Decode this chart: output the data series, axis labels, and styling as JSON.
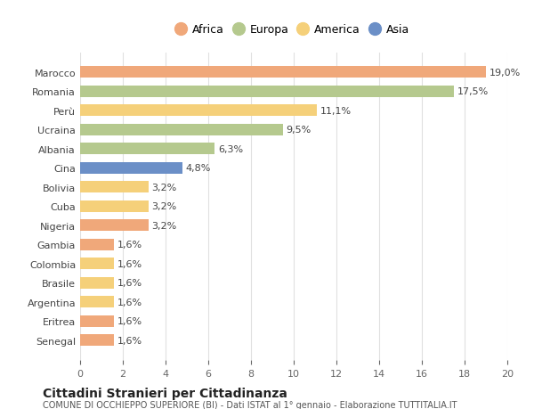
{
  "categories": [
    "Senegal",
    "Eritrea",
    "Argentina",
    "Brasile",
    "Colombia",
    "Gambia",
    "Nigeria",
    "Cuba",
    "Bolivia",
    "Cina",
    "Albania",
    "Ucraina",
    "Perù",
    "Romania",
    "Marocco"
  ],
  "values": [
    1.6,
    1.6,
    1.6,
    1.6,
    1.6,
    1.6,
    3.2,
    3.2,
    3.2,
    4.8,
    6.3,
    9.5,
    11.1,
    17.5,
    19.0
  ],
  "continents": [
    "Africa",
    "Africa",
    "America",
    "America",
    "America",
    "Africa",
    "Africa",
    "America",
    "America",
    "Asia",
    "Europa",
    "Europa",
    "America",
    "Europa",
    "Africa"
  ],
  "colors": {
    "Africa": "#F0A87A",
    "Europa": "#B5C98E",
    "America": "#F5D07A",
    "Asia": "#6B8FC7"
  },
  "labels": [
    "1,6%",
    "1,6%",
    "1,6%",
    "1,6%",
    "1,6%",
    "1,6%",
    "3,2%",
    "3,2%",
    "3,2%",
    "4,8%",
    "6,3%",
    "9,5%",
    "11,1%",
    "17,5%",
    "19,0%"
  ],
  "xlim": [
    0,
    20
  ],
  "xticks": [
    0,
    2,
    4,
    6,
    8,
    10,
    12,
    14,
    16,
    18,
    20
  ],
  "title": "Cittadini Stranieri per Cittadinanza",
  "subtitle": "COMUNE DI OCCHIEPPO SUPERIORE (BI) - Dati ISTAT al 1° gennaio - Elaborazione TUTTITALIA.IT",
  "legend_order": [
    "Africa",
    "Europa",
    "America",
    "Asia"
  ],
  "background_color": "#ffffff",
  "grid_color": "#e0e0e0"
}
